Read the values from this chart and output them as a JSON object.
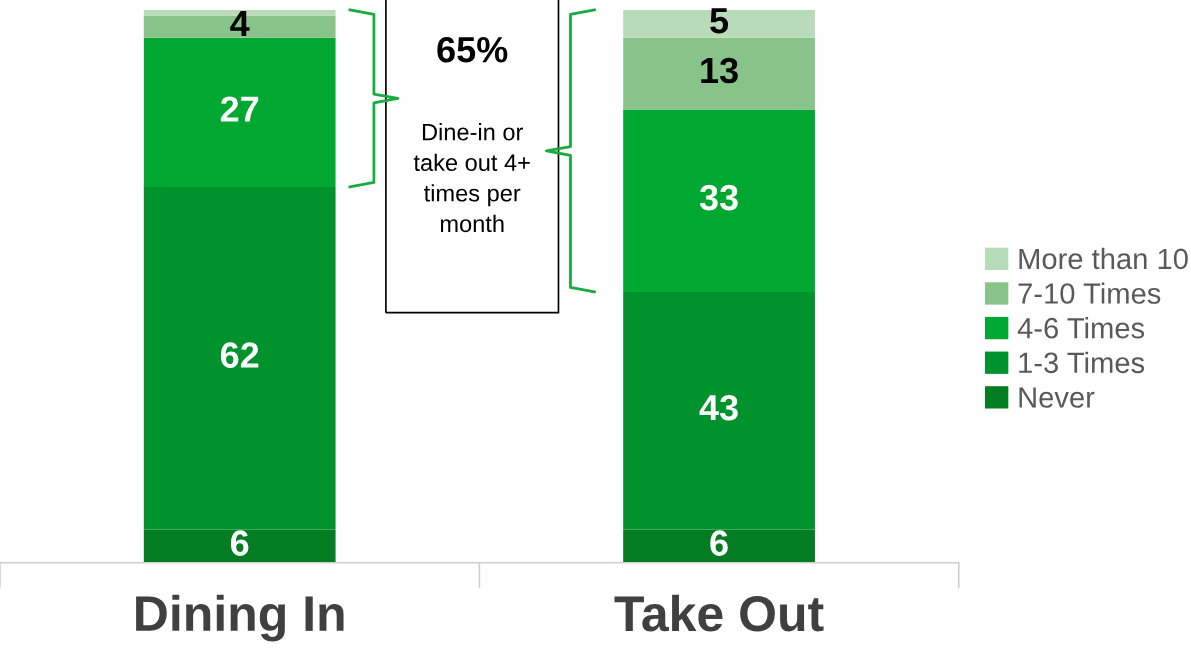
{
  "chart_data": {
    "type": "bar",
    "stacked": true,
    "categories": [
      "Dining In",
      "Take Out"
    ],
    "series": [
      {
        "name": "Never",
        "color": "#037c22",
        "values": [
          6,
          6
        ],
        "value_labels": [
          "6",
          "6"
        ]
      },
      {
        "name": "1-3 Times",
        "color": "#00932d",
        "values": [
          62,
          43
        ],
        "value_labels": [
          "62",
          "43"
        ]
      },
      {
        "name": "4-6 Times",
        "color": "#00a832",
        "values": [
          27,
          33
        ],
        "value_labels": [
          "27",
          "33"
        ]
      },
      {
        "name": "7-10 Times",
        "color": "#88c48a",
        "values": [
          4,
          13
        ],
        "value_labels": [
          "4",
          "13"
        ]
      },
      {
        "name": "More than 10",
        "color": "#b8dbb9",
        "values": [
          1,
          5
        ],
        "value_labels": [
          null,
          "5"
        ]
      }
    ],
    "annotations": [
      "65%",
      "Dine-in or take out 4+ times per month"
    ],
    "legend": "right",
    "grid": false
  }
}
